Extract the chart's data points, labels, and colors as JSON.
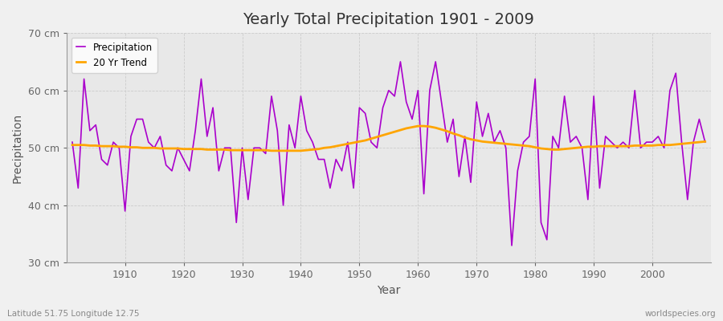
{
  "title": "Yearly Total Precipitation 1901 - 2009",
  "xlabel": "Year",
  "ylabel": "Precipitation",
  "subtitle": "Latitude 51.75 Longitude 12.75",
  "watermark": "worldspecies.org",
  "precip_color": "#AA00CC",
  "trend_color": "#FFA500",
  "bg_color": "#F0F0F0",
  "plot_bg_color": "#E8E8E8",
  "ylim": [
    30,
    70
  ],
  "yticks": [
    30,
    40,
    50,
    60,
    70
  ],
  "years": [
    1901,
    1902,
    1903,
    1904,
    1905,
    1906,
    1907,
    1908,
    1909,
    1910,
    1911,
    1912,
    1913,
    1914,
    1915,
    1916,
    1917,
    1918,
    1919,
    1920,
    1921,
    1922,
    1923,
    1924,
    1925,
    1926,
    1927,
    1928,
    1929,
    1930,
    1931,
    1932,
    1933,
    1934,
    1935,
    1936,
    1937,
    1938,
    1939,
    1940,
    1941,
    1942,
    1943,
    1944,
    1945,
    1946,
    1947,
    1948,
    1949,
    1950,
    1951,
    1952,
    1953,
    1954,
    1955,
    1956,
    1957,
    1958,
    1959,
    1960,
    1961,
    1962,
    1963,
    1964,
    1965,
    1966,
    1967,
    1968,
    1969,
    1970,
    1971,
    1972,
    1973,
    1974,
    1975,
    1976,
    1977,
    1978,
    1979,
    1980,
    1981,
    1982,
    1983,
    1984,
    1985,
    1986,
    1987,
    1988,
    1989,
    1990,
    1991,
    1992,
    1993,
    1994,
    1995,
    1996,
    1997,
    1998,
    1999,
    2000,
    2001,
    2002,
    2003,
    2004,
    2005,
    2006,
    2007,
    2008,
    2009
  ],
  "precip": [
    51,
    43,
    62,
    53,
    54,
    48,
    47,
    51,
    50,
    39,
    52,
    55,
    55,
    51,
    50,
    52,
    47,
    46,
    50,
    48,
    46,
    53,
    62,
    52,
    57,
    46,
    50,
    50,
    37,
    50,
    41,
    50,
    50,
    49,
    59,
    53,
    40,
    54,
    50,
    59,
    53,
    51,
    48,
    48,
    43,
    48,
    46,
    51,
    43,
    57,
    56,
    51,
    50,
    57,
    60,
    59,
    65,
    58,
    55,
    60,
    42,
    60,
    65,
    58,
    51,
    55,
    45,
    52,
    44,
    58,
    52,
    56,
    51,
    53,
    50,
    33,
    46,
    51,
    52,
    62,
    37,
    34,
    52,
    50,
    59,
    51,
    52,
    50,
    41,
    59,
    43,
    52,
    51,
    50,
    51,
    50,
    60,
    50,
    51,
    51,
    52,
    50,
    60,
    63,
    51,
    41,
    51,
    55,
    51
  ],
  "trend": [
    50.5,
    50.5,
    50.5,
    50.4,
    50.4,
    50.3,
    50.3,
    50.3,
    50.2,
    50.2,
    50.1,
    50.1,
    50.0,
    50.0,
    50.0,
    49.9,
    49.9,
    49.9,
    49.9,
    49.8,
    49.8,
    49.8,
    49.8,
    49.7,
    49.7,
    49.7,
    49.7,
    49.6,
    49.6,
    49.6,
    49.6,
    49.6,
    49.6,
    49.6,
    49.5,
    49.5,
    49.5,
    49.5,
    49.5,
    49.5,
    49.6,
    49.7,
    49.8,
    50.0,
    50.1,
    50.3,
    50.5,
    50.7,
    50.9,
    51.1,
    51.3,
    51.6,
    51.9,
    52.2,
    52.5,
    52.8,
    53.1,
    53.4,
    53.6,
    53.8,
    53.8,
    53.7,
    53.5,
    53.2,
    52.9,
    52.5,
    52.2,
    51.8,
    51.5,
    51.3,
    51.1,
    51.0,
    50.9,
    50.8,
    50.7,
    50.6,
    50.5,
    50.4,
    50.3,
    50.1,
    49.9,
    49.8,
    49.7,
    49.7,
    49.8,
    49.9,
    50.0,
    50.1,
    50.2,
    50.2,
    50.3,
    50.3,
    50.3,
    50.3,
    50.3,
    50.3,
    50.4,
    50.4,
    50.4,
    50.4,
    50.5,
    50.5,
    50.5,
    50.6,
    50.7,
    50.8,
    50.9,
    51.0,
    51.1
  ]
}
